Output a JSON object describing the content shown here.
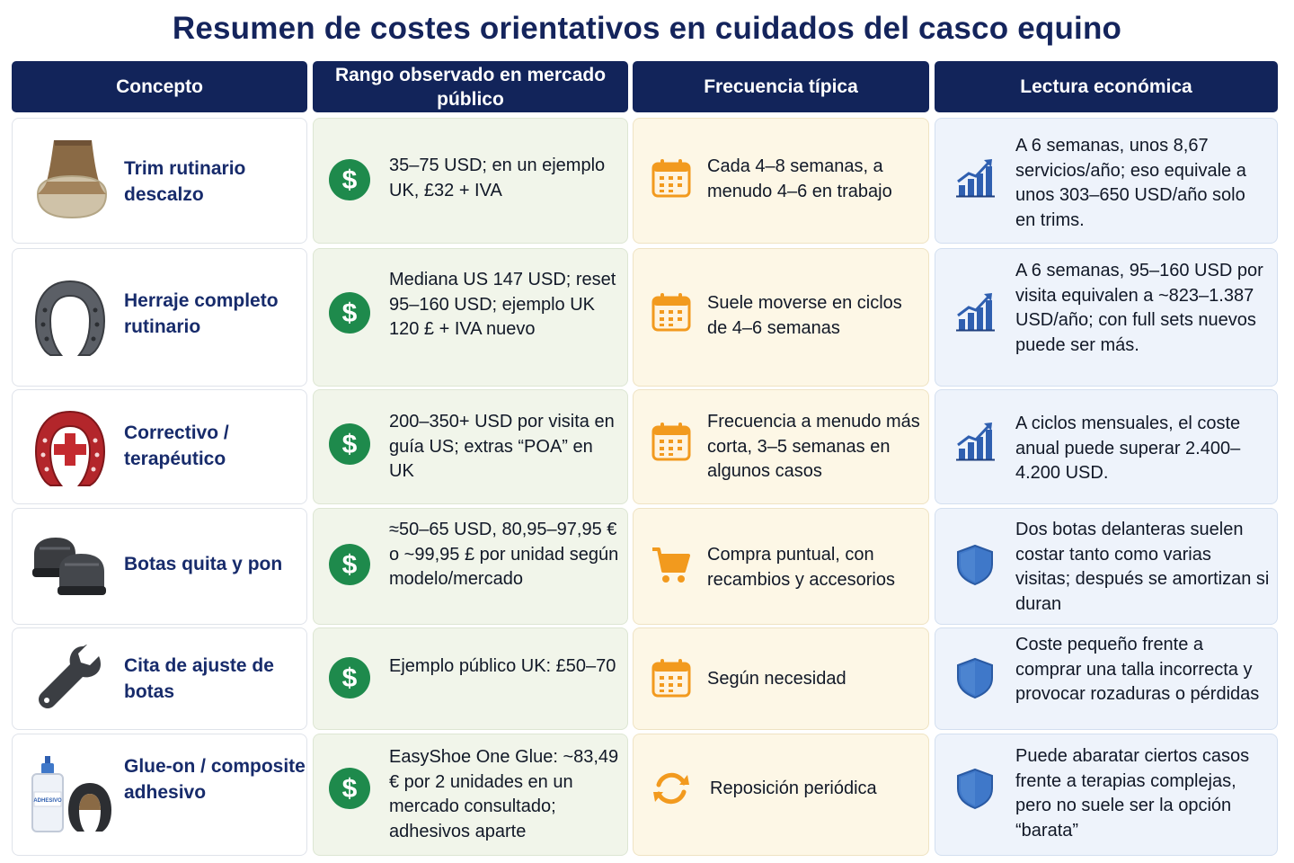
{
  "title": "Resumen de costes orientativos en cuidados del casco equino",
  "headers": {
    "concepto": "Concepto",
    "rango": "Rango observado en mercado público",
    "frecuencia": "Frecuencia típica",
    "lectura": "Lectura económica"
  },
  "rows": [
    {
      "concept": "Trim rutinario descalzo",
      "concept_icon": "bare-hoof-icon",
      "range": "35–75 USD; en un ejemplo UK, £32 + IVA",
      "frequency_icon": "calendar-icon",
      "frequency": "Cada 4–8 semanas, a menudo 4–6 en trabajo",
      "reading_icon": "growth-chart-icon",
      "reading": "A 6 semanas, unos 8,67 servicios/año; eso equivale a unos 303–650 USD/año solo en trims."
    },
    {
      "concept": "Herraje completo rutinario",
      "concept_icon": "horseshoe-icon",
      "range": "Mediana US 147 USD; reset 95–160 USD; ejemplo UK 120 £ + IVA nuevo",
      "frequency_icon": "calendar-icon",
      "frequency": "Suele moverse en ciclos de 4–6 semanas",
      "reading_icon": "growth-chart-icon",
      "reading": "A 6 semanas, 95–160 USD por visita equivalen a ~823–1.387 USD/año; con full sets nuevos puede ser más."
    },
    {
      "concept": "Correctivo / terapéutico",
      "concept_icon": "therapeutic-horseshoe-icon",
      "range": "200–350+ USD por visita en guía US; extras “POA” en UK",
      "frequency_icon": "calendar-icon",
      "frequency": "Frecuencia a menudo más corta, 3–5 semanas en algunos casos",
      "reading_icon": "growth-chart-icon",
      "reading": "A ciclos mensuales, el coste anual puede superar 2.400–4.200 USD."
    },
    {
      "concept": "Botas quita y pon",
      "concept_icon": "hoof-boots-icon",
      "range": "≈50–65 USD, 80,95–97,95 € o ~99,95 £ por unidad según modelo/mercado",
      "frequency_icon": "shopping-cart-icon",
      "frequency": "Compra puntual, con recambios y accesorios",
      "reading_icon": "shield-icon",
      "reading": "Dos botas delanteras suelen costar tanto como varias visitas; después se amortizan si duran"
    },
    {
      "concept": "Cita de ajuste de botas",
      "concept_icon": "wrench-icon",
      "range": "Ejemplo público UK: £50–70",
      "frequency_icon": "calendar-icon",
      "frequency": "Según necesidad",
      "reading_icon": "shield-icon",
      "reading": "Coste pequeño frente a comprar una talla incorrecta y provocar rozaduras o pérdidas"
    },
    {
      "concept": "Glue-on / composite adhesivo",
      "concept_icon": "glue-bottle-shoe-icon",
      "glue_label": "ADHESIVO",
      "range": "EasyShoe One Glue: ~83,49 € por 2 unidades en un mercado consultado; adhesivos aparte",
      "frequency_icon": "refresh-icon",
      "frequency": "Reposición periódica",
      "reading_icon": "shield-icon",
      "reading": "Puede abaratar ciertos casos frente a terapias complejas, pero no suele ser la opción “barata”"
    }
  ],
  "colors": {
    "header_bg": "#12245a",
    "title": "#14245c",
    "concept_text": "#172b6b",
    "dollar_green": "#1e8a4c",
    "calendar_orange": "#f29a1e",
    "chart_blue": "#2f5fb0",
    "shield_blue": "#3f78c9"
  }
}
